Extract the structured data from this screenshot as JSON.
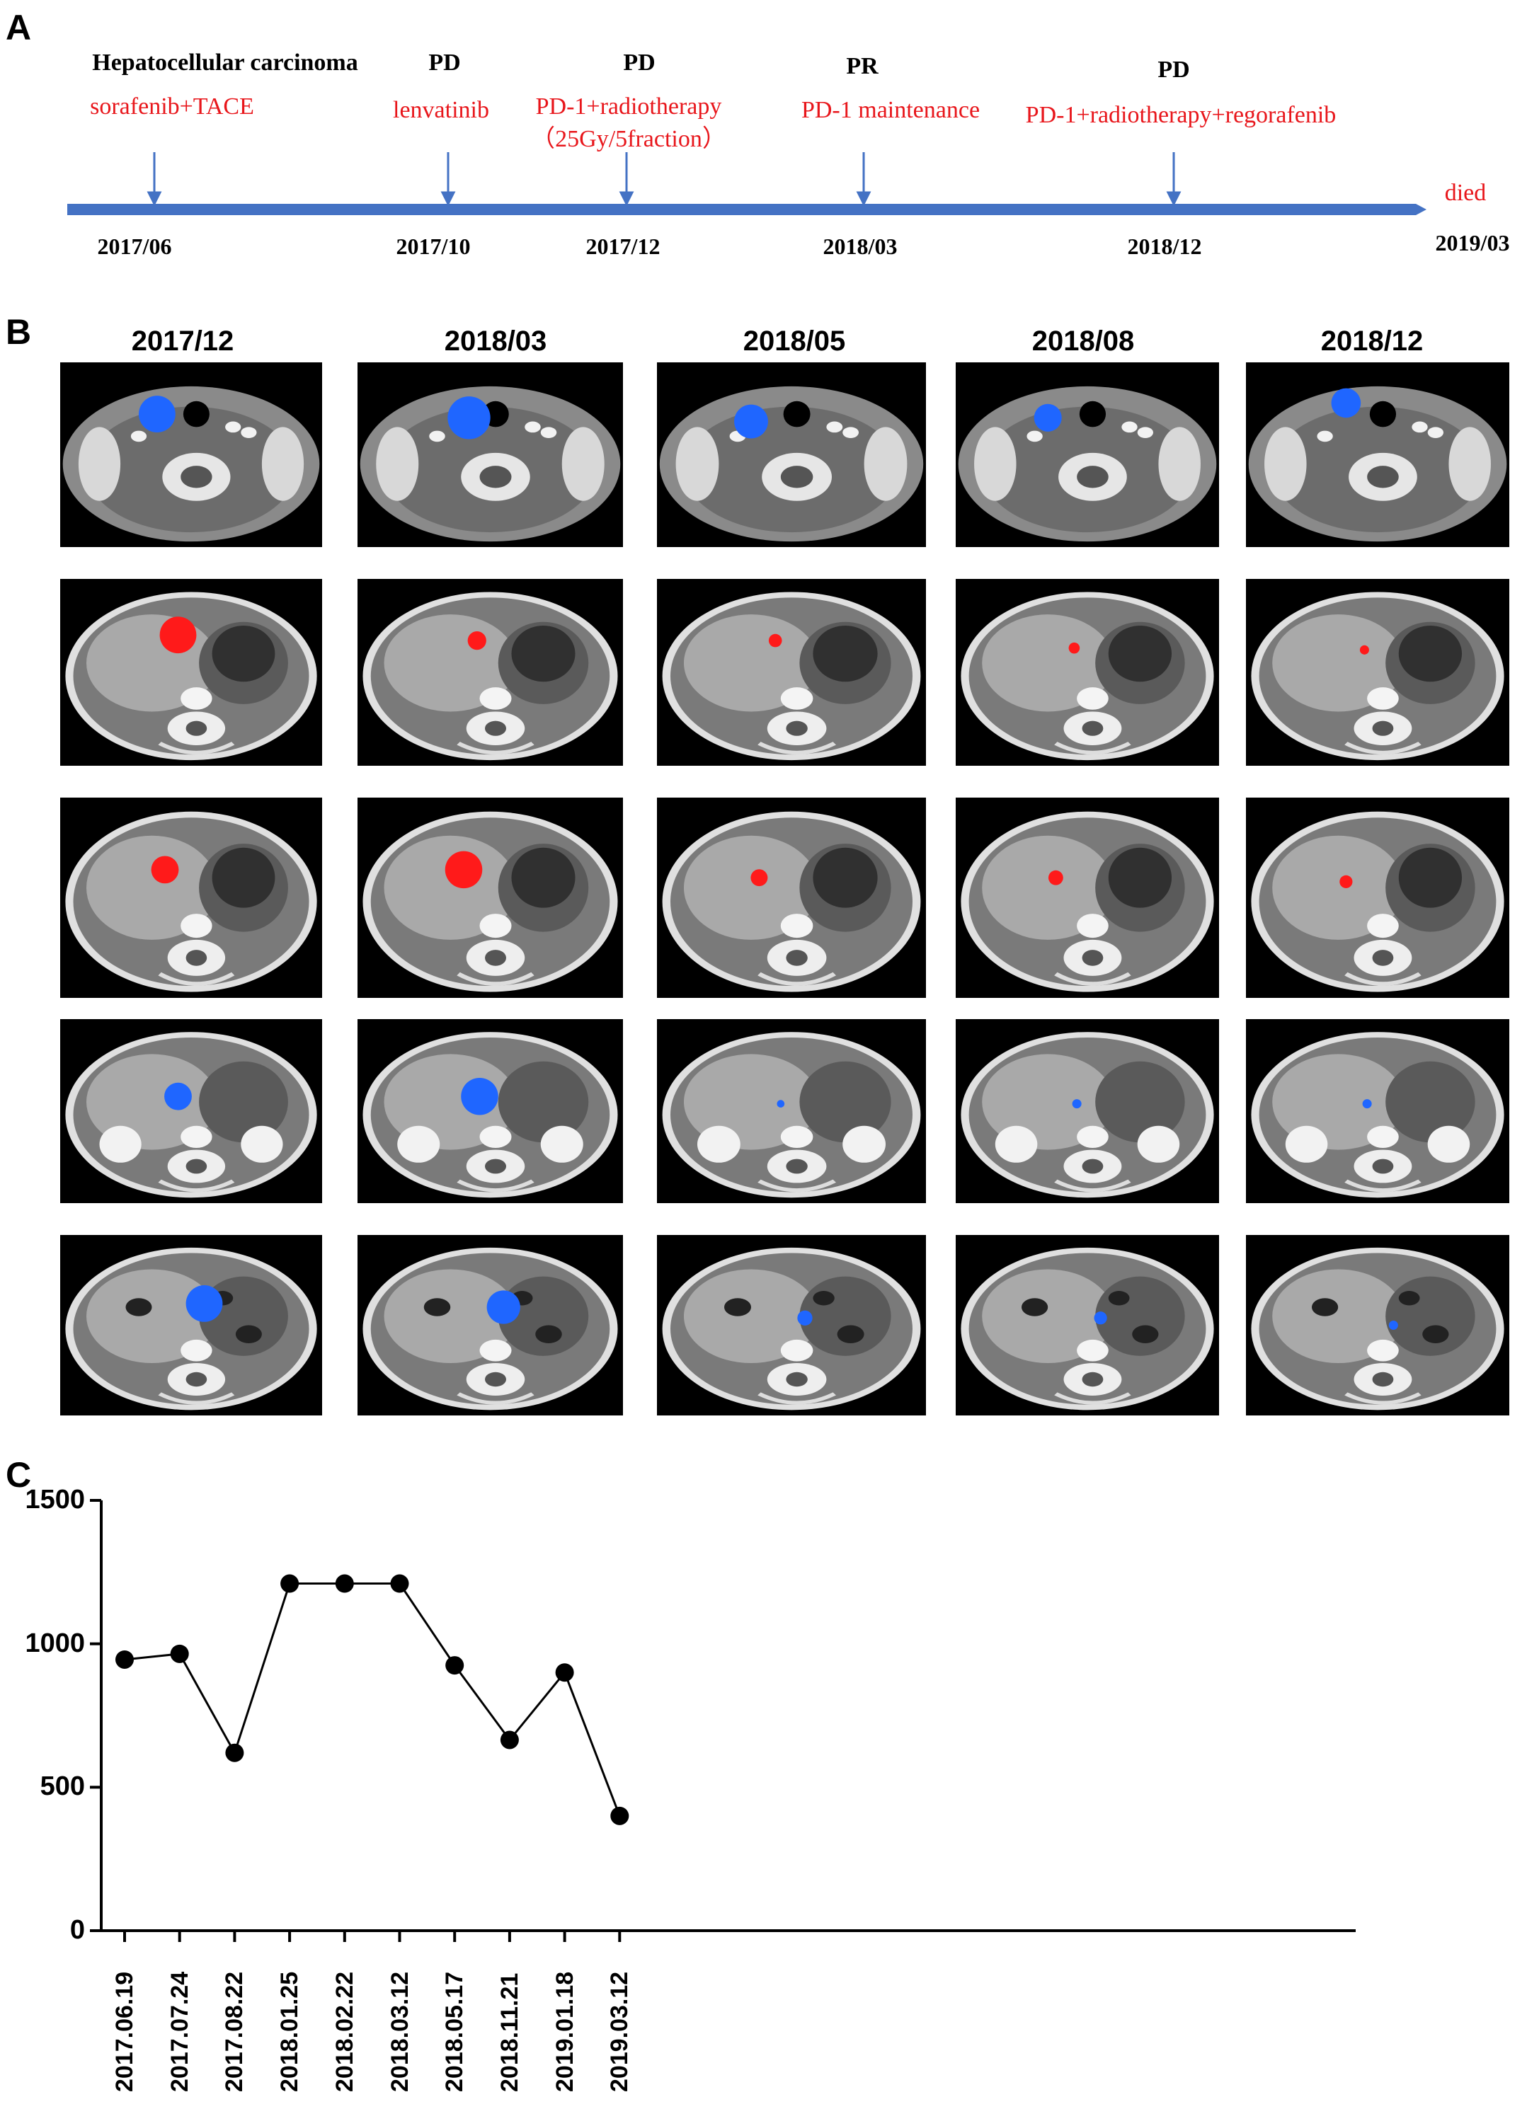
{
  "panel_labels": {
    "a": "A",
    "b": "B",
    "c": "C"
  },
  "timeline": {
    "events": [
      {
        "head": "Hepatocellular carcinoma",
        "treatment": "sorafenib+TACE",
        "date": "2017/06"
      },
      {
        "head": "PD",
        "treatment": "lenvatinib",
        "date": "2017/10"
      },
      {
        "head": "PD",
        "treatment": "PD-1+radiotherapy",
        "treatment2": "（25Gy/5fraction）",
        "date": "2017/12"
      },
      {
        "head": "PR",
        "treatment": "PD-1 maintenance",
        "date": "2018/03"
      },
      {
        "head": "PD",
        "treatment": "PD-1+radiotherapy+regorafenib",
        "date": "2018/12"
      }
    ],
    "end_label": "died",
    "end_date": "2019/03",
    "colors": {
      "axis": "#4472c4",
      "treatment": "#e8161b"
    }
  },
  "ct_grid": {
    "columns": [
      "2017/12",
      "2018/03",
      "2018/05",
      "2018/08",
      "2018/12"
    ],
    "row_lesions": [
      {
        "row": "neck",
        "color": "#1f66ff",
        "sizes": [
          1.0,
          1.15,
          0.9,
          0.75,
          0.8
        ]
      },
      {
        "row": "upper-abdomen-1",
        "color": "#ff1a1a",
        "sizes": [
          1.0,
          0.5,
          0.35,
          0.3,
          0.25
        ]
      },
      {
        "row": "upper-abdomen-2",
        "color": "#ff1a1a",
        "sizes": [
          0.75,
          1.0,
          0.45,
          0.4,
          0.35
        ]
      },
      {
        "row": "kidney-level",
        "color": "#1f66ff",
        "sizes": [
          0.75,
          1.0,
          0.2,
          0.25,
          0.25
        ]
      },
      {
        "row": "lower-abdomen",
        "color": "#1f66ff",
        "sizes": [
          1.0,
          0.9,
          0.4,
          0.35,
          0.25
        ]
      }
    ]
  },
  "chart_data": {
    "type": "line",
    "categories": [
      "2017.06.19",
      "2017.07.24",
      "2017.08.22",
      "2018.01.25",
      "2018.02.22",
      "2018.03.12",
      "2018.05.17",
      "2018.11.21",
      "2019.01.18",
      "2019.03.12"
    ],
    "values": [
      945,
      965,
      620,
      1210,
      1210,
      1210,
      925,
      665,
      900,
      400
    ],
    "ylim": [
      0,
      1500
    ],
    "yticks": [
      "1500",
      "1000",
      "500",
      "0"
    ],
    "ytick_values": [
      1500,
      1000,
      500,
      0
    ],
    "title": "",
    "xlabel": "",
    "ylabel": ""
  }
}
